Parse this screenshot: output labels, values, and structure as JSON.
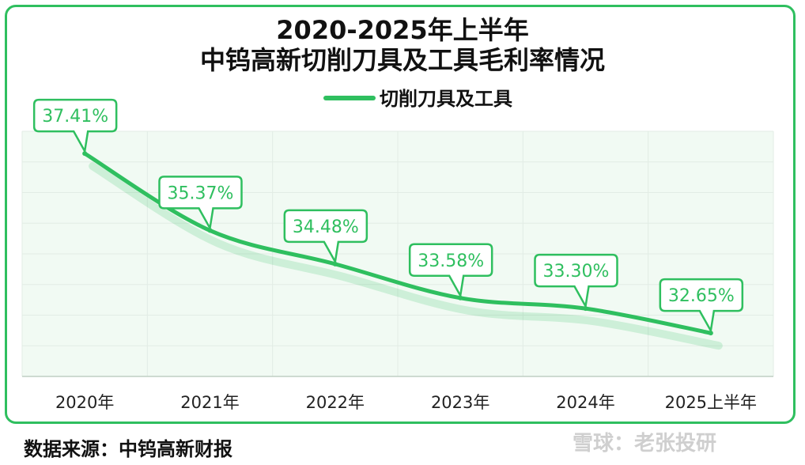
{
  "chart_data": {
    "type": "line",
    "title": "2020-2025年上半年",
    "subtitle": "中钨高新切削刀具及工具毛利率情况",
    "categories": [
      "2020年",
      "2021年",
      "2022年",
      "2023年",
      "2024年",
      "2025上半年"
    ],
    "series": [
      {
        "name": "切削刀具及工具",
        "values": [
          37.41,
          35.37,
          34.48,
          33.58,
          33.3,
          32.65
        ],
        "labels": [
          "37.41%",
          "35.37%",
          "34.48%",
          "33.58%",
          "33.30%",
          "32.65%"
        ]
      }
    ],
    "ylim": [
      31.5,
      38.0
    ],
    "grid": true,
    "legend_position": "top-center",
    "colors": {
      "line": "#2fbf5f",
      "frame": "#2fbf5f",
      "plot_bg": "#f1faf3",
      "label_text": "#2fbf5f"
    }
  },
  "footer": {
    "source": "数据来源：中钨高新财报",
    "watermark": "雪球：老张投研"
  }
}
